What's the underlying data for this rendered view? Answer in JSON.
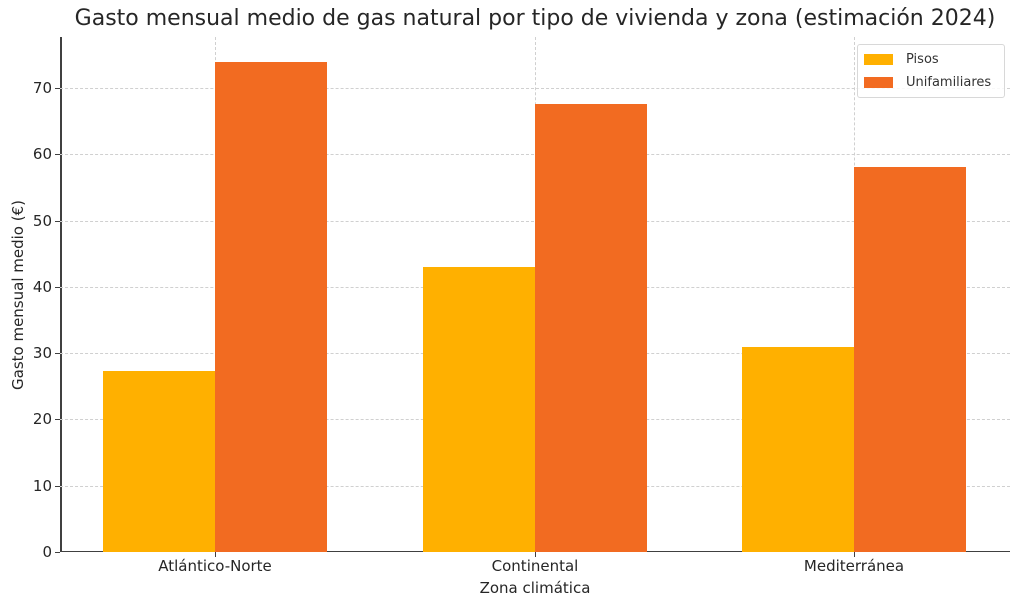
{
  "chart_data": {
    "type": "bar",
    "title": "Gasto mensual medio de gas natural por tipo de vivienda y zona (estimación 2024)",
    "xlabel": "Zona climática",
    "ylabel": "Gasto mensual medio (€)",
    "categories": [
      "Atlántico-Norte",
      "Continental",
      "Mediterránea"
    ],
    "series": [
      {
        "name": "Pisos",
        "color": "#FFB000",
        "values": [
          27.3,
          43.0,
          31.0
        ]
      },
      {
        "name": "Unifamiliares",
        "color": "#F26B21",
        "values": [
          73.9,
          67.6,
          58.1
        ]
      }
    ],
    "ylim": [
      0,
      77.7
    ],
    "yticks": [
      0,
      10,
      20,
      30,
      40,
      50,
      60,
      70
    ],
    "grid": true,
    "legend_position": "upper right"
  }
}
